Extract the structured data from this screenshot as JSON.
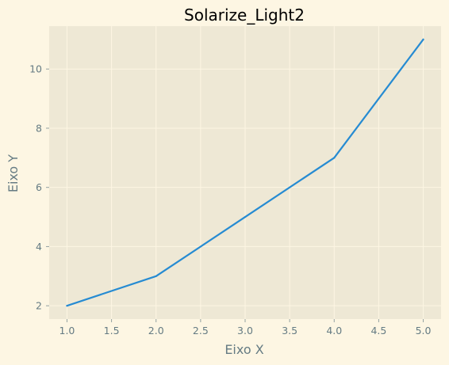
{
  "chart_data": {
    "type": "line",
    "title": "Solarize_Light2",
    "xlabel": "Eixo X",
    "ylabel": "Eixo Y",
    "x": [
      1,
      2,
      3,
      4,
      5
    ],
    "series": [
      {
        "values": [
          2,
          3,
          5,
          7,
          11
        ]
      }
    ],
    "xlim": [
      0.8,
      5.2
    ],
    "ylim": [
      1.55,
      11.45
    ],
    "xticks": [
      1.0,
      1.5,
      2.0,
      2.5,
      3.0,
      3.5,
      4.0,
      4.5,
      5.0
    ],
    "xtick_labels": [
      "1.0",
      "1.5",
      "2.0",
      "2.5",
      "3.0",
      "3.5",
      "4.0",
      "4.5",
      "5.0"
    ],
    "yticks": [
      2,
      4,
      6,
      8,
      10
    ],
    "ytick_labels": [
      "2",
      "4",
      "6",
      "8",
      "10"
    ],
    "grid": true,
    "colors": {
      "figure_background": "#fdf6e3",
      "plot_background": "#eee8d5",
      "grid": "#fdf6e3",
      "series": "#268bd2",
      "text": "#657b83"
    }
  }
}
